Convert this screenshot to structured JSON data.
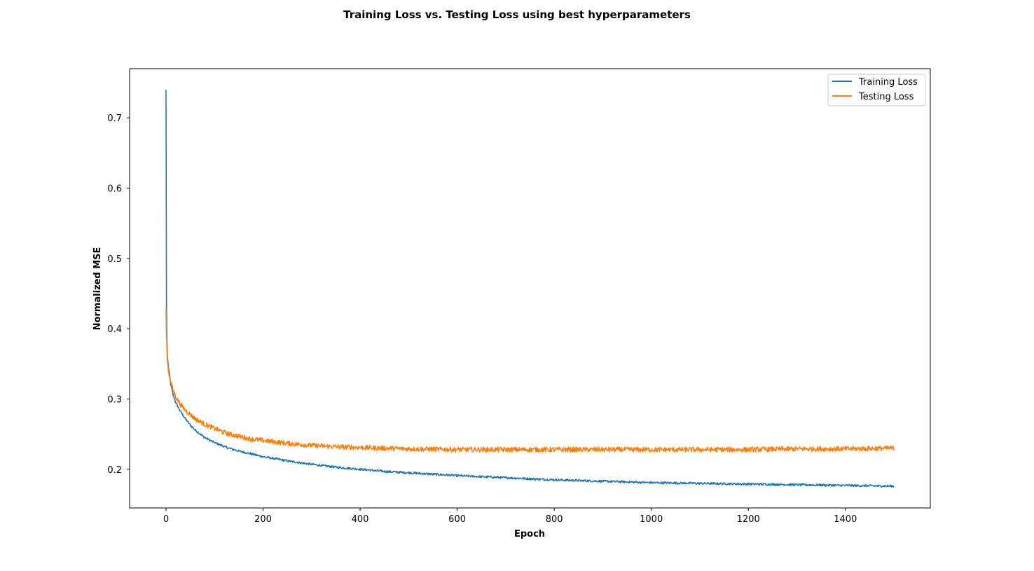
{
  "chart_data": {
    "type": "line",
    "title": "Training Loss vs. Testing Loss using best hyperparameters",
    "xlabel": "Epoch",
    "ylabel": "Normalized MSE",
    "xlim": [
      -75,
      1575
    ],
    "ylim": [
      0.145,
      0.77
    ],
    "x_ticks": [
      0,
      200,
      400,
      600,
      800,
      1000,
      1200,
      1400
    ],
    "y_ticks": [
      0.2,
      0.3,
      0.4,
      0.5,
      0.6,
      0.7
    ],
    "grid": false,
    "legend_position": "top-right",
    "series": [
      {
        "name": "Training Loss",
        "color": "#1f77b4",
        "x": [
          0,
          1,
          2,
          3,
          5,
          8,
          10,
          15,
          20,
          30,
          40,
          50,
          60,
          80,
          100,
          125,
          150,
          175,
          200,
          250,
          300,
          350,
          400,
          450,
          500,
          600,
          700,
          800,
          900,
          1000,
          1100,
          1200,
          1300,
          1400,
          1500
        ],
        "values": [
          0.74,
          0.43,
          0.38,
          0.36,
          0.345,
          0.33,
          0.32,
          0.305,
          0.295,
          0.282,
          0.272,
          0.263,
          0.256,
          0.245,
          0.238,
          0.231,
          0.226,
          0.222,
          0.218,
          0.212,
          0.207,
          0.203,
          0.2,
          0.197,
          0.195,
          0.191,
          0.188,
          0.185,
          0.183,
          0.181,
          0.18,
          0.179,
          0.178,
          0.177,
          0.176
        ]
      },
      {
        "name": "Testing Loss",
        "color": "#ff7f0e",
        "x": [
          0,
          1,
          2,
          3,
          5,
          8,
          10,
          15,
          20,
          30,
          40,
          50,
          60,
          80,
          100,
          125,
          150,
          175,
          200,
          250,
          300,
          350,
          400,
          450,
          500,
          600,
          700,
          800,
          900,
          1000,
          1100,
          1200,
          1300,
          1400,
          1500
        ],
        "values": [
          0.43,
          0.39,
          0.37,
          0.355,
          0.34,
          0.33,
          0.323,
          0.312,
          0.303,
          0.292,
          0.284,
          0.278,
          0.272,
          0.264,
          0.258,
          0.251,
          0.247,
          0.243,
          0.241,
          0.237,
          0.234,
          0.232,
          0.231,
          0.23,
          0.229,
          0.228,
          0.228,
          0.228,
          0.228,
          0.228,
          0.228,
          0.228,
          0.229,
          0.229,
          0.23
        ]
      }
    ]
  }
}
